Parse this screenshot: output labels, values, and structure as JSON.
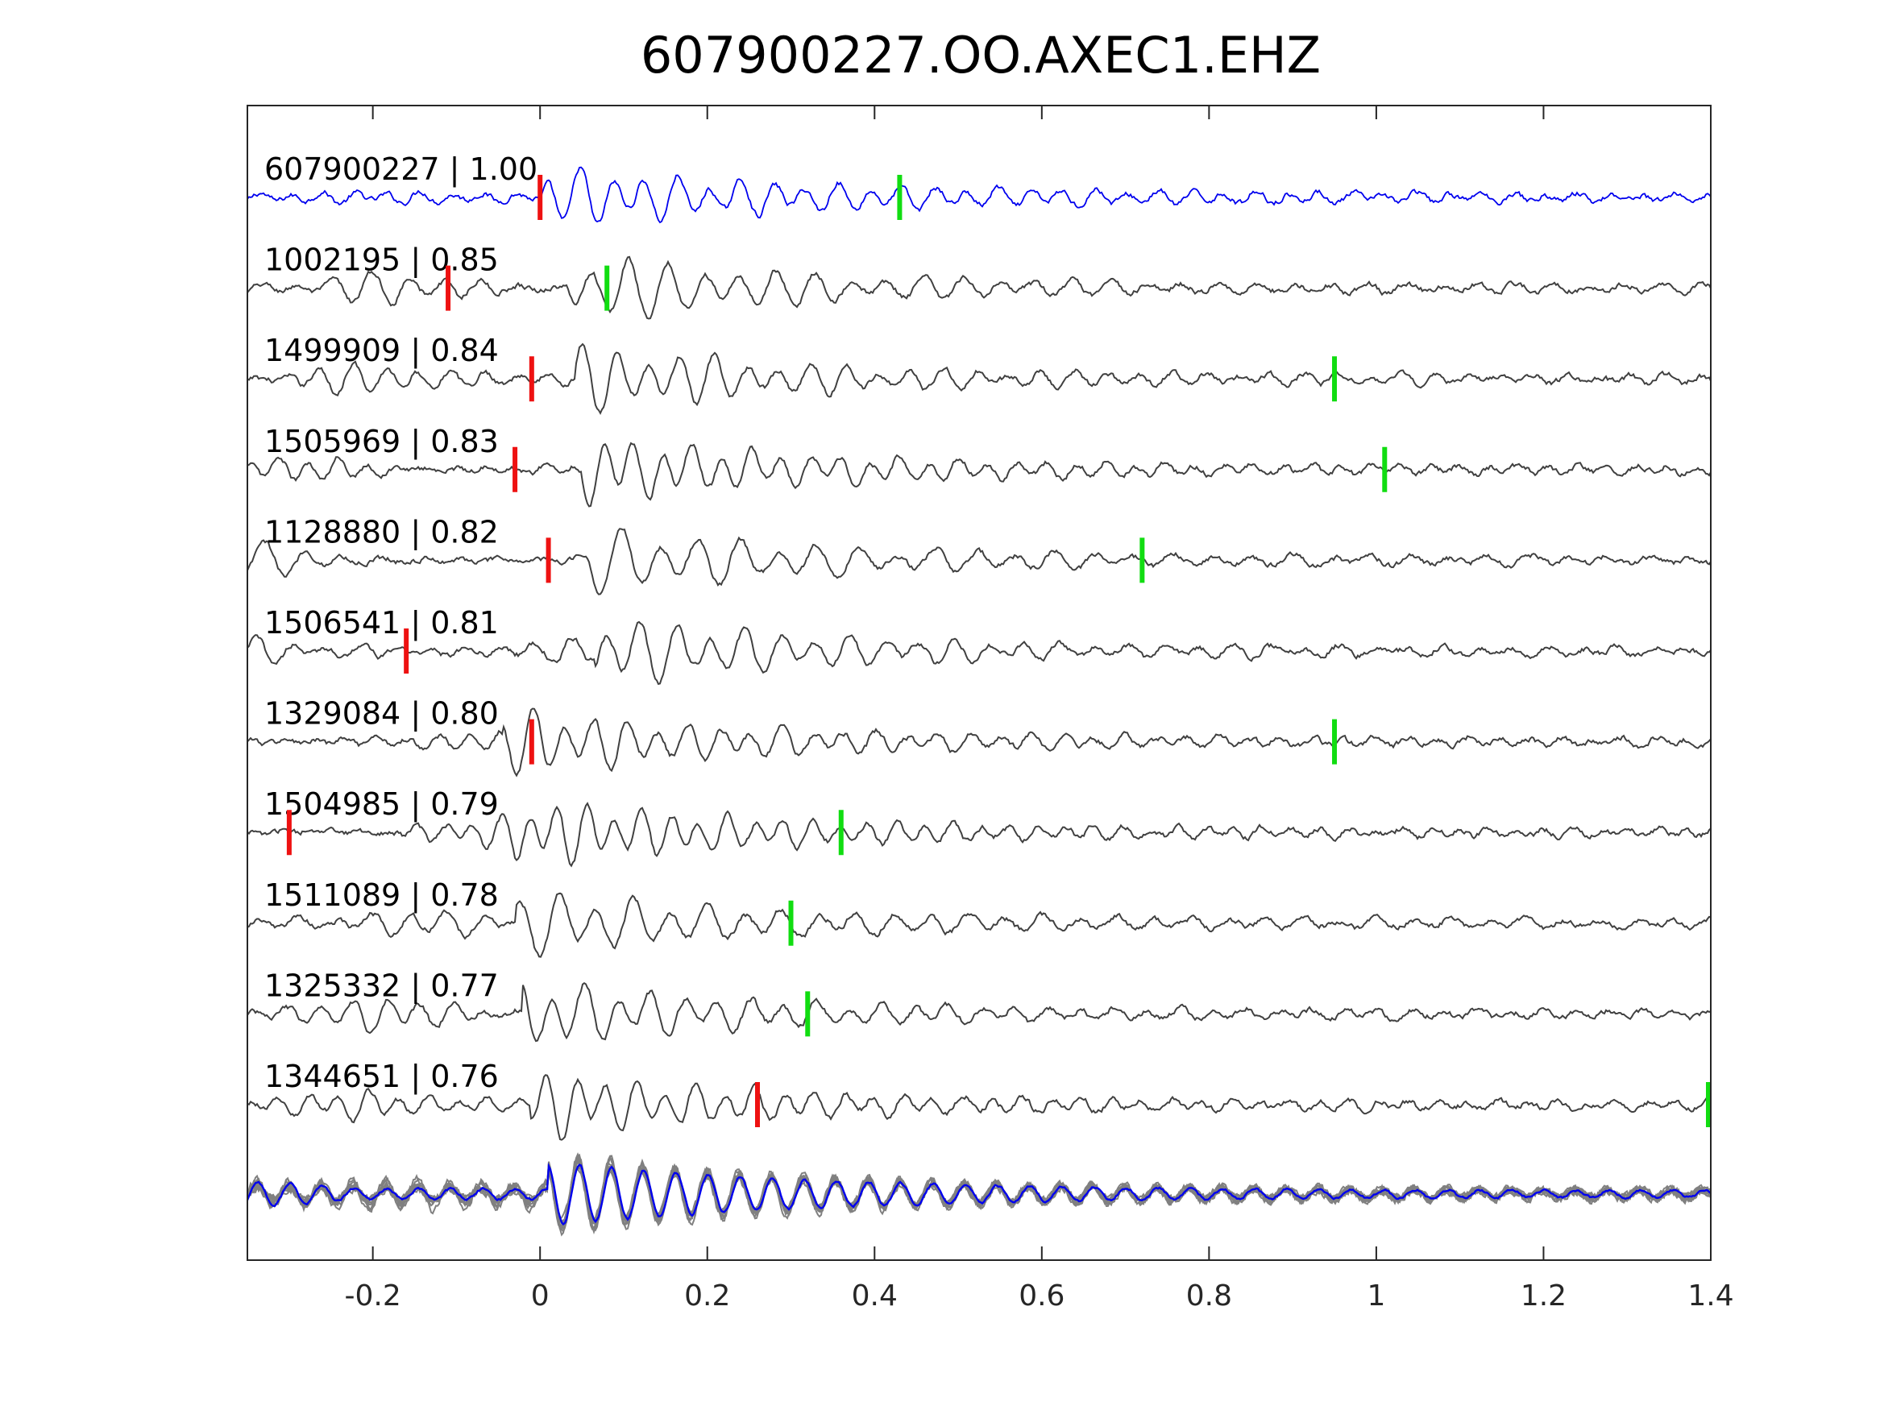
{
  "chart_data": {
    "type": "line",
    "title": "607900227.OO.AXEC1.EHZ",
    "xlabel": "",
    "ylabel": "",
    "xlim": [
      -0.35,
      1.4
    ],
    "xticks": [
      -0.2,
      0,
      0.2,
      0.4,
      0.6,
      0.8,
      1,
      1.2,
      1.4
    ],
    "xtick_labels": [
      "-0.2",
      "0",
      "0.2",
      "0.4",
      "0.6",
      "0.8",
      "1",
      "1.2",
      "1.4"
    ],
    "grid": false,
    "colors": {
      "template": "#0000ee",
      "match": "#404040",
      "stack": "#808080",
      "p_pick": "#ee1111",
      "s_pick": "#11dd11",
      "axis": "#262626"
    },
    "series": [
      {
        "label": "607900227 | 1.00",
        "p_pick": 0.0,
        "s_pick": 0.43,
        "role": "template"
      },
      {
        "label": "1002195 | 0.85",
        "p_pick": -0.11,
        "s_pick": 0.08,
        "role": "match"
      },
      {
        "label": "1499909 | 0.84",
        "p_pick": -0.01,
        "s_pick": 0.95,
        "role": "match"
      },
      {
        "label": "1505969 | 0.83",
        "p_pick": -0.03,
        "s_pick": 1.01,
        "role": "match"
      },
      {
        "label": "1128880 | 0.82",
        "p_pick": 0.01,
        "s_pick": 0.72,
        "role": "match"
      },
      {
        "label": "1506541 | 0.81",
        "p_pick": -0.16,
        "s_pick": null,
        "role": "match"
      },
      {
        "label": "1329084 | 0.80",
        "p_pick": -0.01,
        "s_pick": 0.95,
        "role": "match"
      },
      {
        "label": "1504985 | 0.79",
        "p_pick": -0.3,
        "s_pick": 0.36,
        "role": "match"
      },
      {
        "label": "1511089 | 0.78",
        "p_pick": null,
        "s_pick": 0.3,
        "role": "match"
      },
      {
        "label": "1325332 | 0.77",
        "p_pick": null,
        "s_pick": 0.32,
        "role": "match"
      },
      {
        "label": "1344651 | 0.76",
        "p_pick": 0.26,
        "s_pick": 1.4,
        "role": "match"
      }
    ]
  }
}
